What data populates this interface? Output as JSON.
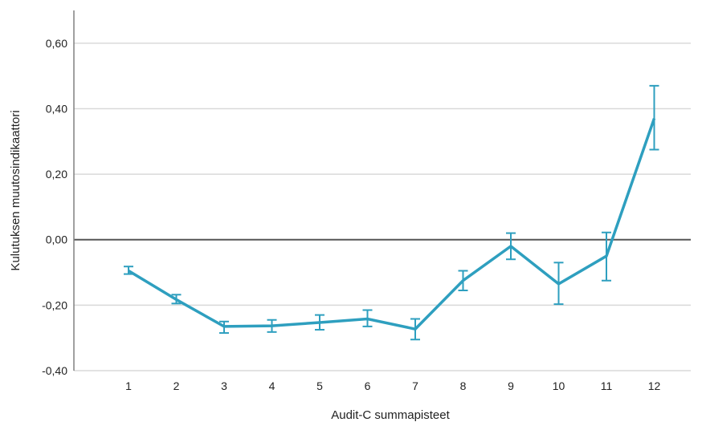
{
  "chart_data": {
    "type": "line",
    "xlabel": "Audit-C summapisteet",
    "ylabel": "Kulutuksen muutosindikaattori",
    "ylim": [
      -0.4,
      0.7
    ],
    "y_ticks": [
      -0.4,
      -0.2,
      0.0,
      0.2,
      0.4,
      0.6
    ],
    "y_tick_labels": [
      "-0,40",
      "-0,20",
      "0,00",
      "0,20",
      "0,40",
      "0,60"
    ],
    "categories": [
      "1",
      "2",
      "3",
      "4",
      "5",
      "6",
      "7",
      "8",
      "9",
      "10",
      "11",
      "12"
    ],
    "series": [
      {
        "values": [
          -0.095,
          -0.183,
          -0.265,
          -0.263,
          -0.253,
          -0.242,
          -0.273,
          -0.125,
          -0.02,
          -0.135,
          -0.05,
          0.37
        ],
        "error_low": [
          -0.105,
          -0.195,
          -0.285,
          -0.282,
          -0.275,
          -0.265,
          -0.305,
          -0.155,
          -0.06,
          -0.197,
          -0.125,
          0.275
        ],
        "error_high": [
          -0.082,
          -0.168,
          -0.25,
          -0.245,
          -0.23,
          -0.215,
          -0.242,
          -0.095,
          0.02,
          -0.07,
          0.022,
          0.47
        ]
      }
    ],
    "grid": "horizontal",
    "reference_line_y": 0.0,
    "colors": {
      "series": "#2e9fbf",
      "grid": "#d9d9d9",
      "axis": "#808080",
      "reference": "#555555"
    }
  }
}
